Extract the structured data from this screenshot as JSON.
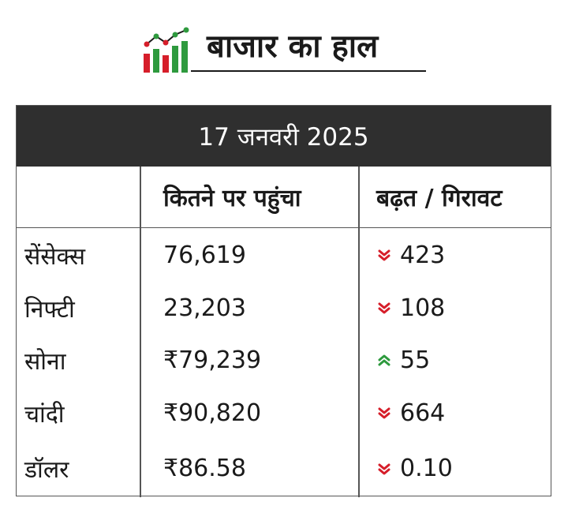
{
  "title": "बाजार का हाल",
  "colors": {
    "header_bg": "#2f2f2f",
    "down": "#d61e2a",
    "up": "#2e9a3e",
    "logo_red": "#d61e2a",
    "logo_green": "#2e9a3e"
  },
  "logo_icon": "market-chart-icon",
  "table": {
    "date": "17 जनवरी 2025",
    "columns": [
      "",
      "कितने पर पहुंचा",
      "बढ़त / गिरावट"
    ],
    "rows": [
      {
        "name": "सेंसेक्स",
        "value": "76,619",
        "direction": "down",
        "change": "423"
      },
      {
        "name": "निफ्टी",
        "value": "23,203",
        "direction": "down",
        "change": "108"
      },
      {
        "name": "सोना",
        "value": "₹79,239",
        "direction": "up",
        "change": "55"
      },
      {
        "name": "चांदी",
        "value": "₹90,820",
        "direction": "down",
        "change": "664"
      },
      {
        "name": "डॉलर",
        "value": "₹86.58",
        "direction": "down",
        "change": "0.10"
      }
    ]
  }
}
